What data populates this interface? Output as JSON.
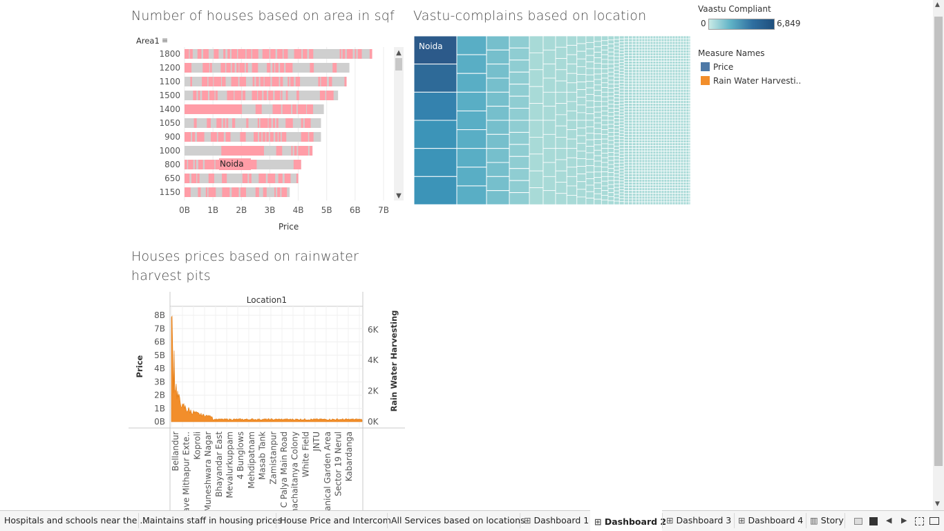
{
  "charts": {
    "area": {
      "title": "Number of houses based on area in sqf",
      "field_label": "Area1",
      "axis_label": "Price",
      "ticks": [
        "0B",
        "1B",
        "2B",
        "3B",
        "4B",
        "5B",
        "6B",
        "7B"
      ],
      "tooltip_label": "Noida"
    },
    "vastu": {
      "title": "Vastu-complains based on location",
      "top_label": "Noida"
    },
    "rain": {
      "title_line1": "Houses prices based on rainwater",
      "title_line2": "harvest pits",
      "header": "Location1",
      "left_axis_label": "Price",
      "right_axis_label": "Rain Water Harvesting",
      "left_ticks": [
        "8B",
        "7B",
        "6B",
        "5B",
        "4B",
        "3B",
        "2B",
        "1B",
        "0B"
      ],
      "right_ticks": [
        "6K",
        "4K",
        "2K",
        "0K"
      ],
      "locations": [
        "Bellandur",
        "Enclave Mithapur Exte..",
        "Koproli",
        "Muneshwara Nagar",
        "Bhayandar East",
        "Mevalurkuppam",
        "4 Bunglows",
        "Mehdipatnam",
        "Masab Tank",
        "Zamistanpur",
        "T C Palya Main Road",
        "Dhanachaitanya Colony",
        "White Field",
        "JNTU",
        "Botanical Garden Area",
        "Sector 19 Nerul",
        "Kabardanga"
      ]
    }
  },
  "legends": {
    "vaastu": {
      "title": "Vaastu Compliant",
      "min": "0",
      "max": "6,849"
    },
    "measures": {
      "title": "Measure Names",
      "items": [
        {
          "label": "Price",
          "color": "#4e79a7"
        },
        {
          "label": "Rain Water Harvesti..",
          "color": "#f28e2b"
        }
      ]
    }
  },
  "chart_data": [
    {
      "type": "bar",
      "title": "Number of houses based on area in sqf",
      "categories": [
        "1800",
        "1200",
        "1100",
        "1500",
        "1400",
        "1050",
        "900",
        "1000",
        "800",
        "650",
        "1150"
      ],
      "values": [
        6.6,
        5.8,
        5.7,
        5.4,
        4.9,
        4.8,
        4.8,
        4.5,
        4.1,
        4.0,
        3.7
      ],
      "xlabel": "Price",
      "ylabel": "Area1",
      "xlim": [
        0,
        7
      ],
      "unit": "B"
    },
    {
      "type": "area",
      "title": "Houses prices based on rainwater harvest pits",
      "xlabel": "Location1",
      "series": [
        {
          "name": "Price",
          "ylim": [
            0,
            8
          ],
          "unit": "B"
        },
        {
          "name": "Rain Water Harvesting",
          "ylim": [
            0,
            7
          ],
          "unit": "K"
        }
      ]
    }
  ],
  "tabs": [
    {
      "label": "Hospitals and schools near the ...",
      "icon": "",
      "active": false
    },
    {
      "label": "Maintains staff in housing prices",
      "icon": "",
      "active": false
    },
    {
      "label": "House Price and Intercom",
      "icon": "",
      "active": false
    },
    {
      "label": "All Services based on locations",
      "icon": "",
      "active": false
    },
    {
      "label": "Dashboard 1",
      "icon": "dashboard-icon",
      "active": false
    },
    {
      "label": "Dashboard 2",
      "icon": "dashboard-icon",
      "active": true
    },
    {
      "label": "Dashboard 3",
      "icon": "dashboard-icon",
      "active": false
    },
    {
      "label": "Dashboard 4",
      "icon": "dashboard-icon",
      "active": false
    },
    {
      "label": "Story",
      "icon": "story-icon",
      "active": false
    }
  ],
  "colors": {
    "bar_pink": "#ff9da7",
    "bar_gray": "#cfcfcf",
    "orange": "#f28e2b",
    "blue_dark": "#2c5f8f",
    "teal_light": "#a8dad7"
  }
}
